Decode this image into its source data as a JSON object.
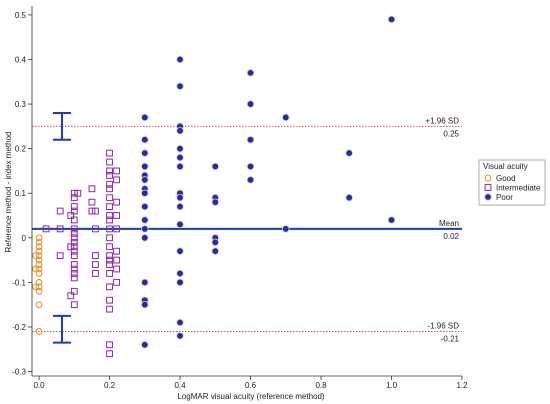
{
  "chart_data": {
    "type": "scatter",
    "title": "",
    "xlabel": "LogMAR visual acuity (reference method)",
    "ylabel": "Reference method - index method",
    "xlim": [
      -0.02,
      1.2
    ],
    "ylim": [
      -0.31,
      0.52
    ],
    "xticks": [
      0.0,
      0.2,
      0.4,
      0.6,
      0.8,
      1.0,
      1.2
    ],
    "xtick_labels": [
      "0.0",
      "0.2",
      "0.4",
      "0.6",
      "0.8",
      "1.0",
      "1.2"
    ],
    "yticks": [
      -0.3,
      -0.2,
      -0.1,
      0,
      0.1,
      0.2,
      0.3,
      0.4,
      0.5
    ],
    "ytick_labels": [
      "-0.3",
      "-0.2",
      "-0.1",
      "0",
      "0.1",
      "0.2",
      "0.3",
      "0.4",
      "0.5"
    ],
    "grid": false,
    "legend_position": "right",
    "legend_title": "Visual acuity",
    "reference_lines": [
      {
        "id": "upper",
        "y": 0.25,
        "label_top": "+1.96 SD",
        "label_bottom": "0.25",
        "style": "dotted",
        "color": "#b04040"
      },
      {
        "id": "mean",
        "y": 0.02,
        "label_top": "Mean",
        "label_bottom": "0.02",
        "style": "solid",
        "color": "#1a3fa8"
      },
      {
        "id": "lower",
        "y": -0.21,
        "label_top": "-1.96 SD",
        "label_bottom": "-0.21",
        "style": "dotted",
        "color": "#b04040"
      }
    ],
    "error_bars": [
      {
        "x": 0.065,
        "low": 0.22,
        "high": 0.28,
        "color": "#2233cc"
      },
      {
        "x": 0.065,
        "low": -0.235,
        "high": -0.175,
        "color": "#2233cc"
      }
    ],
    "series": [
      {
        "name": "Good",
        "marker": "circle-open",
        "color": "#e09020",
        "points": [
          [
            0.0,
            0.0
          ],
          [
            0.0,
            -0.01
          ],
          [
            0.0,
            -0.02
          ],
          [
            0.0,
            -0.03
          ],
          [
            0.0,
            -0.04
          ],
          [
            0.0,
            -0.05
          ],
          [
            0.0,
            -0.06
          ],
          [
            0.0,
            -0.07
          ],
          [
            0.0,
            -0.08
          ],
          [
            0.0,
            -0.1
          ],
          [
            0.0,
            -0.11
          ],
          [
            0.0,
            -0.12
          ],
          [
            0.0,
            -0.15
          ],
          [
            0.0,
            -0.21
          ],
          [
            -0.01,
            -0.04
          ],
          [
            -0.01,
            -0.07
          ],
          [
            -0.01,
            -0.11
          ]
        ]
      },
      {
        "name": "Intermediate",
        "marker": "square-open",
        "color": "#8a2aa8",
        "points": [
          [
            0.02,
            0.02
          ],
          [
            0.06,
            0.06
          ],
          [
            0.06,
            -0.04
          ],
          [
            0.06,
            0.02
          ],
          [
            0.1,
            0.1
          ],
          [
            0.1,
            0.09
          ],
          [
            0.1,
            0.07
          ],
          [
            0.1,
            0.06
          ],
          [
            0.1,
            0.04
          ],
          [
            0.1,
            0.02
          ],
          [
            0.1,
            0.01
          ],
          [
            0.1,
            0.0
          ],
          [
            0.1,
            -0.01
          ],
          [
            0.1,
            -0.02
          ],
          [
            0.1,
            -0.03
          ],
          [
            0.1,
            -0.04
          ],
          [
            0.1,
            -0.06
          ],
          [
            0.1,
            -0.07
          ],
          [
            0.1,
            -0.08
          ],
          [
            0.1,
            -0.09
          ],
          [
            0.1,
            -0.12
          ],
          [
            0.1,
            -0.15
          ],
          [
            0.09,
            0.05
          ],
          [
            0.09,
            -0.02
          ],
          [
            0.09,
            -0.13
          ],
          [
            0.11,
            0.1
          ],
          [
            0.15,
            0.11
          ],
          [
            0.15,
            0.08
          ],
          [
            0.15,
            0.06
          ],
          [
            0.16,
            0.06
          ],
          [
            0.16,
            0.02
          ],
          [
            0.16,
            -0.04
          ],
          [
            0.16,
            -0.06
          ],
          [
            0.16,
            -0.08
          ],
          [
            0.2,
            0.19
          ],
          [
            0.2,
            0.17
          ],
          [
            0.2,
            0.15
          ],
          [
            0.2,
            0.14
          ],
          [
            0.2,
            0.12
          ],
          [
            0.2,
            0.11
          ],
          [
            0.2,
            0.09
          ],
          [
            0.2,
            0.07
          ],
          [
            0.2,
            0.05
          ],
          [
            0.2,
            0.04
          ],
          [
            0.2,
            0.02
          ],
          [
            0.2,
            0.0
          ],
          [
            0.2,
            -0.02
          ],
          [
            0.2,
            -0.04
          ],
          [
            0.2,
            -0.05
          ],
          [
            0.2,
            -0.06
          ],
          [
            0.2,
            -0.08
          ],
          [
            0.2,
            -0.11
          ],
          [
            0.2,
            -0.14
          ],
          [
            0.2,
            -0.16
          ],
          [
            0.2,
            -0.24
          ],
          [
            0.2,
            -0.26
          ],
          [
            0.22,
            0.15
          ],
          [
            0.22,
            0.13
          ],
          [
            0.22,
            0.08
          ],
          [
            0.22,
            0.05
          ],
          [
            0.22,
            0.02
          ],
          [
            0.22,
            -0.03
          ],
          [
            0.22,
            -0.05
          ],
          [
            0.22,
            -0.07
          ],
          [
            0.22,
            -0.1
          ]
        ]
      },
      {
        "name": "Poor",
        "marker": "circle-filled",
        "color": "#2a2a9a",
        "points": [
          [
            0.3,
            0.27
          ],
          [
            0.3,
            0.22
          ],
          [
            0.3,
            0.19
          ],
          [
            0.3,
            0.16
          ],
          [
            0.3,
            0.14
          ],
          [
            0.3,
            0.13
          ],
          [
            0.3,
            0.11
          ],
          [
            0.3,
            0.1
          ],
          [
            0.3,
            0.07
          ],
          [
            0.3,
            0.04
          ],
          [
            0.3,
            0.02
          ],
          [
            0.3,
            0.0
          ],
          [
            0.3,
            -0.1
          ],
          [
            0.3,
            -0.14
          ],
          [
            0.3,
            -0.15
          ],
          [
            0.3,
            -0.24
          ],
          [
            0.4,
            0.4
          ],
          [
            0.4,
            0.34
          ],
          [
            0.4,
            0.25
          ],
          [
            0.4,
            0.24
          ],
          [
            0.4,
            0.2
          ],
          [
            0.4,
            0.18
          ],
          [
            0.4,
            0.16
          ],
          [
            0.4,
            0.1
          ],
          [
            0.4,
            0.09
          ],
          [
            0.4,
            0.07
          ],
          [
            0.4,
            0.03
          ],
          [
            0.4,
            -0.03
          ],
          [
            0.4,
            -0.08
          ],
          [
            0.4,
            -0.1
          ],
          [
            0.4,
            -0.19
          ],
          [
            0.4,
            -0.22
          ],
          [
            0.5,
            0.16
          ],
          [
            0.5,
            0.09
          ],
          [
            0.5,
            0.08
          ],
          [
            0.5,
            0.0
          ],
          [
            0.5,
            -0.01
          ],
          [
            0.5,
            -0.03
          ],
          [
            0.6,
            0.37
          ],
          [
            0.6,
            0.3
          ],
          [
            0.6,
            0.22
          ],
          [
            0.6,
            0.16
          ],
          [
            0.6,
            0.13
          ],
          [
            0.7,
            0.27
          ],
          [
            0.7,
            0.02
          ],
          [
            0.88,
            0.19
          ],
          [
            0.88,
            0.09
          ],
          [
            1.0,
            0.49
          ],
          [
            1.0,
            0.04
          ]
        ]
      }
    ]
  }
}
